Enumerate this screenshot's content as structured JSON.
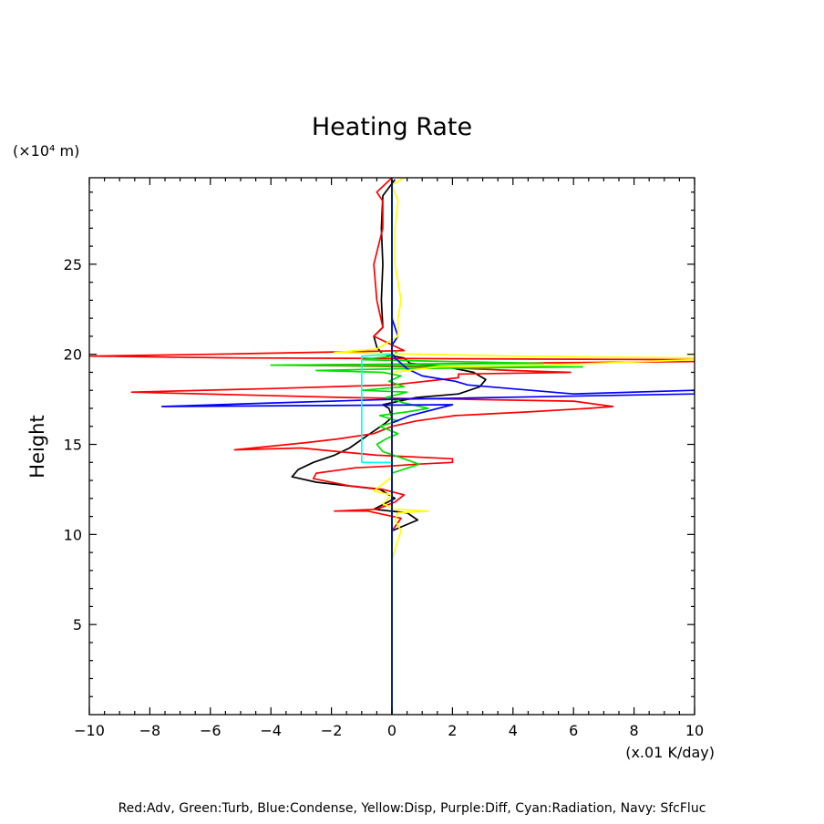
{
  "chart_data": {
    "type": "line",
    "title": "Heating Rate",
    "ylabel": "Height",
    "y_unit": "(×10⁴ m)",
    "x_unit": "(x.01 K/day)",
    "xlim": [
      -10,
      10
    ],
    "ylim": [
      0,
      29.8
    ],
    "x_ticks": [
      -10,
      -8,
      -6,
      -4,
      -2,
      0,
      2,
      4,
      6,
      8,
      10
    ],
    "x_tick_labels": [
      "−10",
      "−8",
      "−6",
      "−4",
      "−2",
      "0",
      "2",
      "4",
      "6",
      "8",
      "10"
    ],
    "y_ticks": [
      5,
      10,
      15,
      20,
      25
    ],
    "y_tick_labels": [
      "5",
      "10",
      "15",
      "20",
      "25"
    ],
    "grid": false,
    "legend_text": "Red:Adv, Green:Turb, Blue:Condense, Yellow:Disp, Purple:Diff, Cyan:Radiation, Navy: SfcFluc",
    "legend_placement": "bottom",
    "series": [
      {
        "color": "#000000",
        "points": [
          [
            0,
            0
          ],
          [
            0,
            10.2
          ],
          [
            0.85,
            10.8
          ],
          [
            0.5,
            11.2
          ],
          [
            -0.6,
            11.4
          ],
          [
            0.1,
            12
          ],
          [
            -0.4,
            12.5
          ],
          [
            -2.5,
            12.9
          ],
          [
            -3.3,
            13.2
          ],
          [
            -3.1,
            13.6
          ],
          [
            -2.6,
            14
          ],
          [
            -1.9,
            14.4
          ],
          [
            -1.4,
            14.8
          ],
          [
            -0.8,
            15.5
          ],
          [
            -0.2,
            16.2
          ],
          [
            0,
            16.5
          ],
          [
            -0.1,
            17
          ],
          [
            -0.3,
            17.2
          ],
          [
            0.8,
            17.6
          ],
          [
            2.2,
            17.8
          ],
          [
            2.9,
            18.2
          ],
          [
            3.1,
            18.6
          ],
          [
            2.7,
            19
          ],
          [
            1.8,
            19.3
          ],
          [
            0.6,
            19.5
          ],
          [
            0.4,
            19.8
          ],
          [
            -0.3,
            20
          ],
          [
            -0.5,
            20.4
          ],
          [
            -0.6,
            21
          ],
          [
            -0.3,
            21.5
          ],
          [
            -0.35,
            23
          ],
          [
            -0.3,
            25
          ],
          [
            -0.35,
            27
          ],
          [
            -0.3,
            28.8
          ],
          [
            0.1,
            29.7
          ]
        ]
      },
      {
        "color": "#ff0000",
        "points": [
          [
            0,
            0
          ],
          [
            0,
            10.2
          ],
          [
            0.3,
            10.9
          ],
          [
            -0.8,
            11.3
          ],
          [
            -1.9,
            11.3
          ],
          [
            -0.5,
            11.4
          ],
          [
            0.1,
            11.8
          ],
          [
            0.4,
            12.2
          ],
          [
            -0.3,
            12.5
          ],
          [
            -1.4,
            12.7
          ],
          [
            -2.6,
            13.1
          ],
          [
            -2.5,
            13.4
          ],
          [
            -1.2,
            13.7
          ],
          [
            0,
            13.8
          ],
          [
            0.8,
            13.9
          ],
          [
            2.0,
            14
          ],
          [
            2.0,
            14.2
          ],
          [
            -0.5,
            14.4
          ],
          [
            -1.8,
            14.6
          ],
          [
            -3,
            14.8
          ],
          [
            -5.2,
            14.7
          ],
          [
            -2.8,
            15.1
          ],
          [
            -1.8,
            15.3
          ],
          [
            -0.6,
            15.6
          ],
          [
            0,
            16
          ],
          [
            0.8,
            16.3
          ],
          [
            2.1,
            16.6
          ],
          [
            4.5,
            16.8
          ],
          [
            6.5,
            17.0
          ],
          [
            7.3,
            17.1
          ],
          [
            6.0,
            17.4
          ],
          [
            2.5,
            17.5
          ],
          [
            -1.5,
            17.6
          ],
          [
            -8.6,
            17.9
          ],
          [
            -4,
            18.1
          ],
          [
            0,
            18.3
          ],
          [
            2.2,
            18.7
          ],
          [
            2.2,
            18.9
          ],
          [
            5.9,
            19.0
          ],
          [
            4.0,
            19.1
          ],
          [
            1.2,
            19.3
          ],
          [
            -3.5,
            19.4
          ],
          [
            10,
            19.6
          ],
          [
            10,
            19.7
          ],
          [
            -5,
            19.8
          ],
          [
            -10,
            19.9
          ],
          [
            -6,
            20
          ],
          [
            0.4,
            20.2
          ],
          [
            -0.6,
            21
          ],
          [
            -0.3,
            21.5
          ],
          [
            -0.5,
            23
          ],
          [
            -0.6,
            25
          ],
          [
            -0.3,
            27
          ],
          [
            -0.3,
            28.5
          ],
          [
            -0.5,
            29
          ],
          [
            0,
            29.8
          ]
        ]
      },
      {
        "color": "#00e000",
        "points": [
          [
            0,
            0
          ],
          [
            0,
            12
          ],
          [
            0,
            13.4
          ],
          [
            0.9,
            13.9
          ],
          [
            0.4,
            14.2
          ],
          [
            -0.3,
            14.6
          ],
          [
            -0.5,
            15
          ],
          [
            -0.2,
            15.3
          ],
          [
            0.2,
            15.6
          ],
          [
            -0.4,
            16
          ],
          [
            0.2,
            16.3
          ],
          [
            -0.4,
            16.6
          ],
          [
            0.5,
            16.8
          ],
          [
            1.2,
            17
          ],
          [
            0.4,
            17.3
          ],
          [
            -0.2,
            17.6
          ],
          [
            0.5,
            17.9
          ],
          [
            -1,
            18
          ],
          [
            0.4,
            18.2
          ],
          [
            -0.1,
            18.5
          ],
          [
            0.3,
            18.8
          ],
          [
            -0.3,
            19
          ],
          [
            -2.5,
            19.1
          ],
          [
            0.3,
            19.2
          ],
          [
            6.3,
            19.3
          ],
          [
            -4,
            19.4
          ],
          [
            5,
            19.5
          ],
          [
            -1,
            19.7
          ],
          [
            0,
            19.9
          ],
          [
            0.2,
            20.2
          ]
        ]
      },
      {
        "color": "#0000ff",
        "points": [
          [
            0,
            0
          ],
          [
            0,
            16.2
          ],
          [
            0.3,
            16.4
          ],
          [
            0.6,
            16.6
          ],
          [
            2,
            17.2
          ],
          [
            -7.6,
            17.1
          ],
          [
            -4,
            17.3
          ],
          [
            0,
            17.5
          ],
          [
            10,
            17.8
          ],
          [
            10,
            18.0
          ],
          [
            6,
            17.8
          ],
          [
            2.5,
            18.3
          ],
          [
            2.1,
            18.5
          ],
          [
            1,
            18.8
          ],
          [
            0.5,
            19.2
          ],
          [
            0.1,
            19.8
          ],
          [
            0,
            20.1
          ],
          [
            0,
            20.5
          ],
          [
            0.2,
            21
          ],
          [
            0,
            22
          ],
          [
            0,
            29.7
          ]
        ]
      },
      {
        "color": "#ffff00",
        "points": [
          [
            0,
            0
          ],
          [
            0,
            8.5
          ],
          [
            0.1,
            9.2
          ],
          [
            0.3,
            10.2
          ],
          [
            0.1,
            10.8
          ],
          [
            0.2,
            11.2
          ],
          [
            1.2,
            11.3
          ],
          [
            0.1,
            11.4
          ],
          [
            -0.3,
            11.7
          ],
          [
            0,
            12.2
          ],
          [
            -0.6,
            12.4
          ],
          [
            -0.3,
            12.8
          ],
          [
            0,
            13.2
          ],
          [
            0,
            19
          ],
          [
            1.5,
            19.3
          ],
          [
            5,
            19.4
          ],
          [
            10,
            19.7
          ],
          [
            10,
            19.8
          ],
          [
            4,
            19.9
          ],
          [
            1.0,
            20
          ],
          [
            -1.9,
            20.1
          ],
          [
            -0.5,
            20.3
          ],
          [
            0.2,
            21
          ],
          [
            0.2,
            22
          ],
          [
            0.3,
            23
          ],
          [
            0.1,
            25
          ],
          [
            0.1,
            27
          ],
          [
            0.2,
            28.5
          ],
          [
            0,
            29.4
          ],
          [
            0.4,
            29.8
          ]
        ]
      },
      {
        "color": "#00ffff",
        "points": [
          [
            0,
            0
          ],
          [
            0,
            14
          ],
          [
            -1,
            14
          ],
          [
            -1,
            19.9
          ],
          [
            0,
            20
          ],
          [
            0,
            29.7
          ]
        ]
      },
      {
        "color": "#000080",
        "points": [
          [
            0,
            0
          ],
          [
            0,
            29.7
          ]
        ]
      }
    ]
  }
}
